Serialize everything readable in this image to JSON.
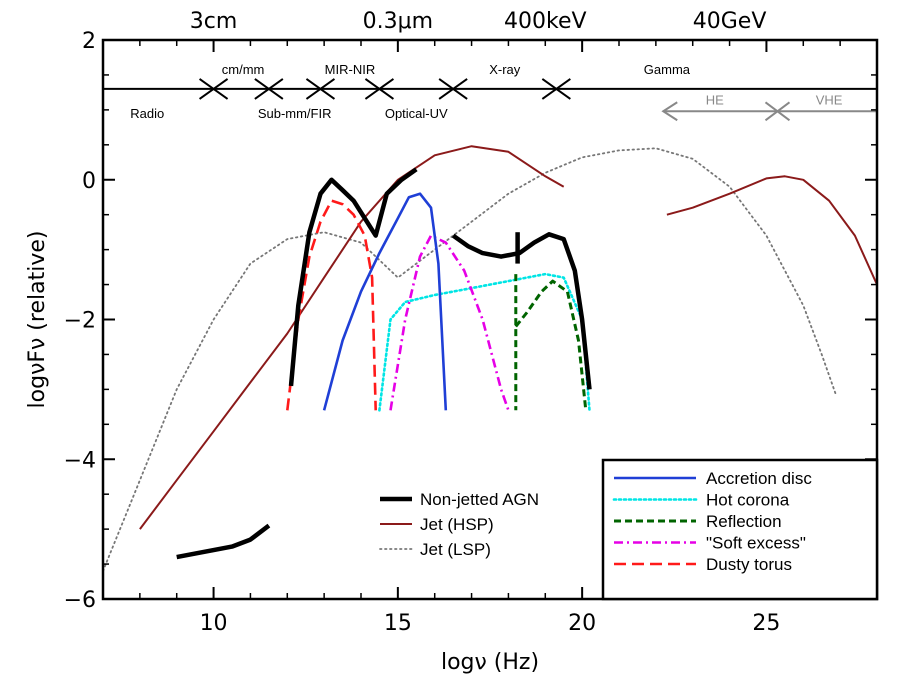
{
  "chart_data": {
    "type": "line",
    "xlabel": "logν (Hz)",
    "ylabel": "logνFν (relative)",
    "xlim": [
      7,
      28
    ],
    "ylim": [
      -6,
      2
    ],
    "x_ticks": [
      10,
      15,
      20,
      25
    ],
    "y_ticks": [
      2,
      0,
      -2,
      -4,
      -6
    ],
    "y_tick_labels": [
      "2",
      "0",
      "−2",
      "−4",
      "−6"
    ],
    "top_axis": [
      {
        "x": 10,
        "label": "3cm"
      },
      {
        "x": 15,
        "label": "0.3μm"
      },
      {
        "x": 19,
        "label": "400keV"
      },
      {
        "x": 24,
        "label": "40GeV"
      }
    ],
    "bands": {
      "line_y": 1.3,
      "separators": [
        10,
        11.5,
        12.9,
        14.5,
        16.5,
        19.3
      ],
      "labels": [
        {
          "x": 8.2,
          "row": "below",
          "text": "Radio"
        },
        {
          "x": 10.8,
          "row": "above",
          "text": "cm/mm"
        },
        {
          "x": 12.2,
          "row": "below",
          "text": "Sub-mm/FIR"
        },
        {
          "x": 13.7,
          "row": "above",
          "text": "MIR-NIR"
        },
        {
          "x": 15.5,
          "row": "below",
          "text": "Optical-UV"
        },
        {
          "x": 17.9,
          "row": "above",
          "text": "X-ray"
        },
        {
          "x": 22.3,
          "row": "above",
          "text": "Gamma"
        }
      ],
      "gamma_sub": {
        "line_y": 0.98,
        "start": 22.2,
        "divider": 25.3,
        "labels": [
          {
            "x": 23.6,
            "text": "HE"
          },
          {
            "x": 26.7,
            "text": "VHE"
          }
        ]
      }
    },
    "series": [
      {
        "name": "Non-jetted AGN",
        "legend": "left",
        "style": "thick-black",
        "color": "#000000",
        "segments": [
          [
            [
              9,
              -5.4
            ],
            [
              9.5,
              -5.35
            ],
            [
              10,
              -5.3
            ],
            [
              10.5,
              -5.25
            ],
            [
              11,
              -5.15
            ],
            [
              11.5,
              -4.95
            ]
          ],
          [
            [
              12.1,
              -2.95
            ],
            [
              12.3,
              -1.8
            ],
            [
              12.6,
              -0.75
            ],
            [
              12.9,
              -0.2
            ],
            [
              13.2,
              0.0
            ],
            [
              13.5,
              -0.15
            ],
            [
              13.8,
              -0.3
            ],
            [
              14.1,
              -0.55
            ],
            [
              14.4,
              -0.8
            ],
            [
              14.7,
              -0.2
            ],
            [
              15.1,
              0.0
            ],
            [
              15.5,
              0.15
            ]
          ],
          [
            [
              16.5,
              -0.8
            ],
            [
              16.9,
              -0.95
            ],
            [
              17.3,
              -1.05
            ],
            [
              17.8,
              -1.1
            ],
            [
              18.3,
              -1.05
            ],
            [
              18.7,
              -0.9
            ],
            [
              19.1,
              -0.78
            ],
            [
              19.5,
              -0.85
            ],
            [
              19.8,
              -1.3
            ],
            [
              20.0,
              -2.0
            ],
            [
              20.2,
              -3.0
            ]
          ],
          [
            [
              18.25,
              -0.75
            ],
            [
              18.25,
              -1.2
            ]
          ]
        ]
      },
      {
        "name": "Jet (HSP)",
        "legend": "left",
        "style": "solid",
        "color": "#8b1a1a",
        "segments": [
          [
            [
              8,
              -5.0
            ],
            [
              9,
              -4.3
            ],
            [
              10,
              -3.6
            ],
            [
              11,
              -2.9
            ],
            [
              12,
              -2.2
            ],
            [
              13,
              -1.4
            ],
            [
              14,
              -0.6
            ],
            [
              15,
              0.0
            ],
            [
              16,
              0.35
            ],
            [
              17,
              0.48
            ],
            [
              18,
              0.4
            ],
            [
              19,
              0.05
            ],
            [
              19.5,
              -0.1
            ]
          ],
          [
            [
              22.3,
              -0.5
            ],
            [
              23,
              -0.4
            ],
            [
              24,
              -0.2
            ],
            [
              25,
              0.02
            ],
            [
              25.5,
              0.05
            ],
            [
              26,
              0.0
            ],
            [
              26.7,
              -0.3
            ],
            [
              27.4,
              -0.8
            ],
            [
              28,
              -1.5
            ]
          ]
        ]
      },
      {
        "name": "Jet (LSP)",
        "legend": "left",
        "style": "dotted",
        "color": "#777777",
        "segments": [
          [
            [
              7,
              -5.6
            ],
            [
              8,
              -4.3
            ],
            [
              9,
              -3.0
            ],
            [
              10,
              -2.0
            ],
            [
              11,
              -1.2
            ],
            [
              12,
              -0.85
            ],
            [
              13,
              -0.75
            ],
            [
              14,
              -0.9
            ],
            [
              15,
              -1.4
            ],
            [
              16,
              -1.0
            ],
            [
              17,
              -0.6
            ],
            [
              18,
              -0.2
            ],
            [
              19,
              0.1
            ],
            [
              20,
              0.32
            ],
            [
              21,
              0.42
            ],
            [
              22,
              0.45
            ],
            [
              23,
              0.3
            ],
            [
              24,
              -0.1
            ],
            [
              25,
              -0.8
            ],
            [
              26,
              -1.8
            ],
            [
              26.5,
              -2.5
            ],
            [
              26.9,
              -3.1
            ]
          ]
        ]
      },
      {
        "name": "Accretion disc",
        "legend": "right",
        "style": "solid-blue",
        "color": "#1f3fd6",
        "segments": [
          [
            [
              13.0,
              -3.3
            ],
            [
              13.5,
              -2.3
            ],
            [
              14.0,
              -1.6
            ],
            [
              14.5,
              -1.05
            ],
            [
              15.0,
              -0.55
            ],
            [
              15.3,
              -0.25
            ],
            [
              15.6,
              -0.2
            ],
            [
              15.9,
              -0.4
            ],
            [
              16.1,
              -1.2
            ],
            [
              16.3,
              -3.3
            ]
          ]
        ]
      },
      {
        "name": "Hot corona",
        "legend": "right",
        "style": "dotted-cyan",
        "color": "#00e5e5",
        "segments": [
          [
            [
              14.5,
              -3.3
            ],
            [
              14.8,
              -2.0
            ],
            [
              15.2,
              -1.75
            ],
            [
              16,
              -1.65
            ],
            [
              17,
              -1.55
            ],
            [
              18,
              -1.45
            ],
            [
              19,
              -1.35
            ],
            [
              19.5,
              -1.4
            ],
            [
              20,
              -2.0
            ],
            [
              20.2,
              -3.3
            ]
          ]
        ]
      },
      {
        "name": "Reflection",
        "legend": "right",
        "style": "dashed-green",
        "color": "#006400",
        "segments": [
          [
            [
              18.2,
              -1.35
            ],
            [
              18.2,
              -3.3
            ]
          ],
          [
            [
              18.2,
              -2.1
            ],
            [
              18.5,
              -1.9
            ],
            [
              18.9,
              -1.6
            ],
            [
              19.2,
              -1.45
            ],
            [
              19.6,
              -1.6
            ],
            [
              19.9,
              -2.3
            ],
            [
              20.1,
              -3.3
            ]
          ]
        ]
      },
      {
        "name": "\"Soft excess\"",
        "legend": "right",
        "style": "dashdot-magenta",
        "color": "#e600e6",
        "segments": [
          [
            [
              14.8,
              -3.3
            ],
            [
              15.2,
              -2.0
            ],
            [
              15.6,
              -1.1
            ],
            [
              15.9,
              -0.8
            ],
            [
              16.3,
              -0.9
            ],
            [
              16.8,
              -1.3
            ],
            [
              17.3,
              -2.0
            ],
            [
              17.8,
              -3.0
            ],
            [
              18.0,
              -3.3
            ]
          ]
        ]
      },
      {
        "name": "Dusty torus",
        "legend": "right",
        "style": "dashed-red",
        "color": "#ff1a1a",
        "segments": [
          [
            [
              12.0,
              -3.3
            ],
            [
              12.3,
              -2.0
            ],
            [
              12.6,
              -1.1
            ],
            [
              12.9,
              -0.6
            ],
            [
              13.2,
              -0.3
            ],
            [
              13.5,
              -0.35
            ],
            [
              13.8,
              -0.5
            ],
            [
              14.1,
              -0.8
            ],
            [
              14.3,
              -1.4
            ],
            [
              14.4,
              -3.3
            ]
          ]
        ]
      }
    ]
  }
}
